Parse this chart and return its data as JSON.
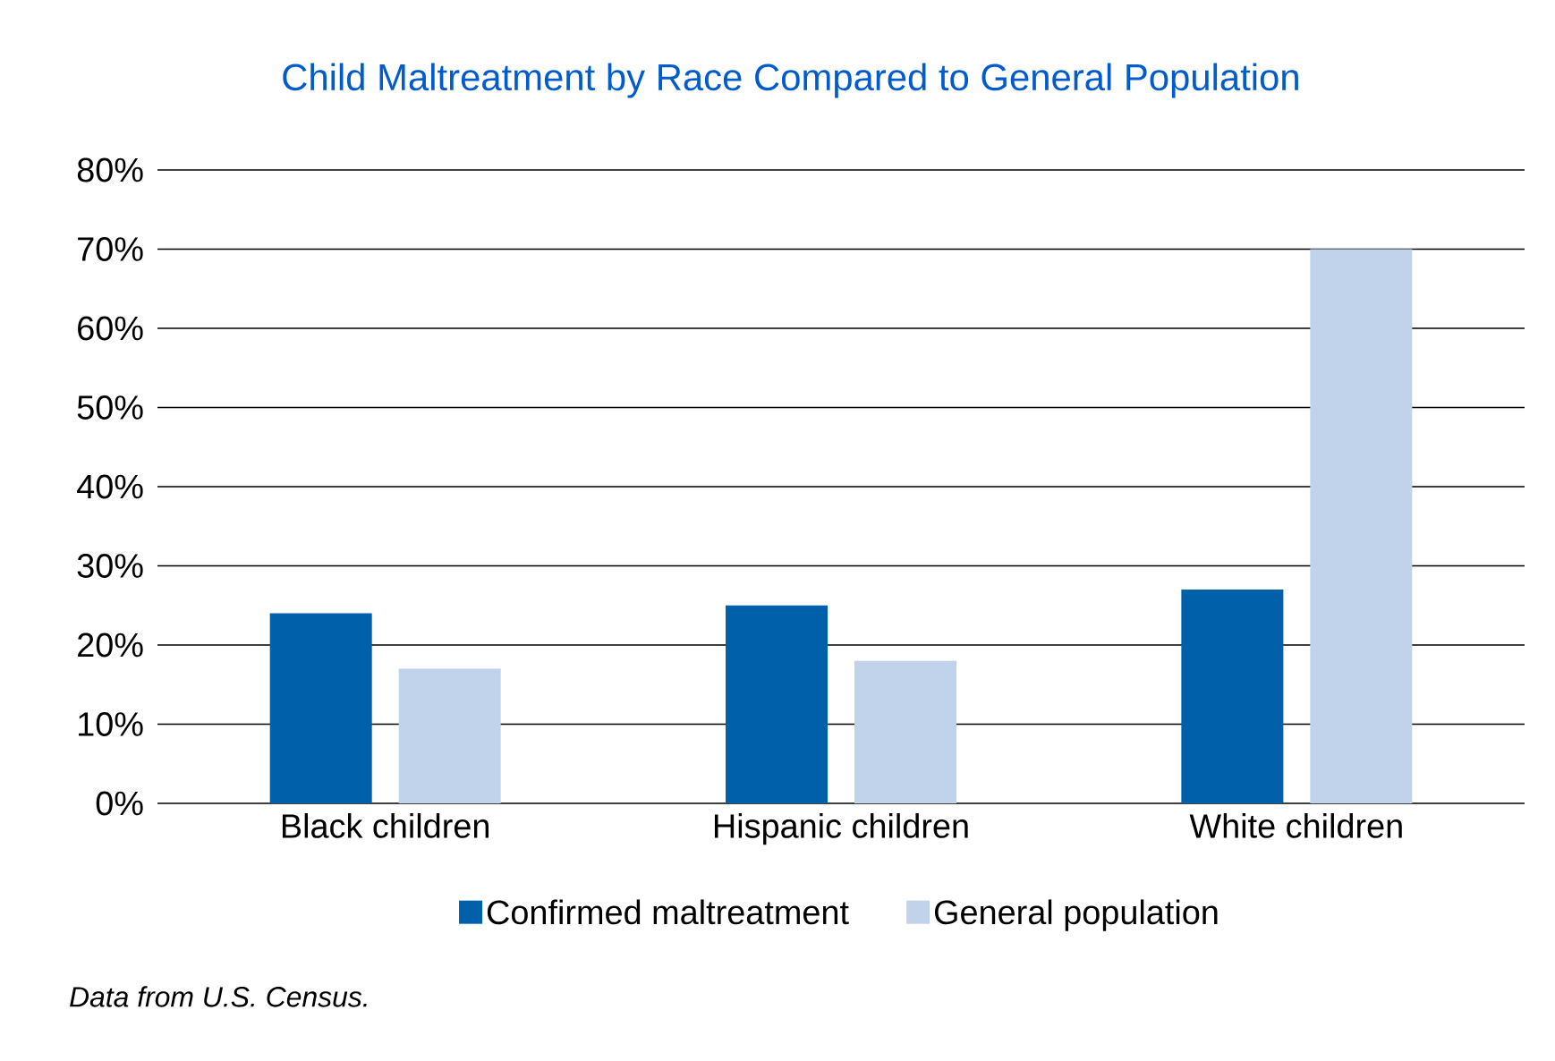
{
  "chart_data": {
    "type": "bar",
    "title": "Child Maltreatment by Race Compared to General Population",
    "categories": [
      "Black children",
      "Hispanic children",
      "White children"
    ],
    "series": [
      {
        "name": "Confirmed maltreatment",
        "color": "#0060a9",
        "values": [
          24,
          25,
          27
        ]
      },
      {
        "name": "General population",
        "color": "#c1d3ea",
        "values": [
          17,
          18,
          70
        ]
      }
    ],
    "ylim": [
      0,
      80
    ],
    "yticks": [
      {
        "value": 0,
        "label": "0%"
      },
      {
        "value": 10,
        "label": "10%"
      },
      {
        "value": 20,
        "label": "20%"
      },
      {
        "value": 30,
        "label": "30%"
      },
      {
        "value": 40,
        "label": "40%"
      },
      {
        "value": 50,
        "label": "50%"
      },
      {
        "value": 60,
        "label": "60%"
      },
      {
        "value": 70,
        "label": "70%"
      },
      {
        "value": 80,
        "label": "80%"
      }
    ],
    "grid": "y",
    "legend": "bottom",
    "annotations": [
      "Data from U.S. Census."
    ]
  }
}
